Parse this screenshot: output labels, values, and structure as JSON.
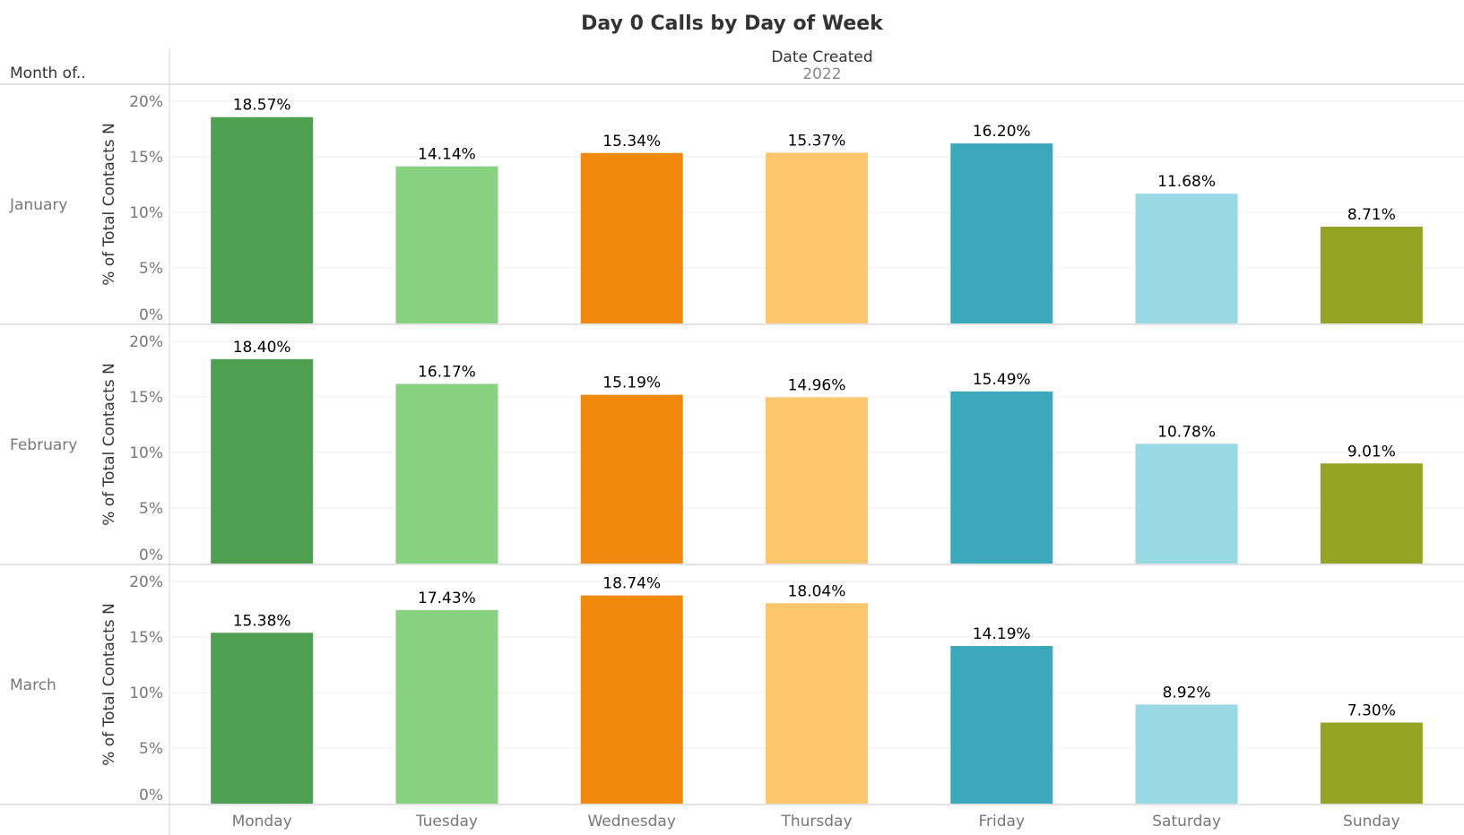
{
  "title": "Day 0 Calls by Day of Week",
  "row_header": "Month of..",
  "column_header": "Date Created",
  "column_sub_header": "2022",
  "chart_data": {
    "type": "bar",
    "categories": [
      "Monday",
      "Tuesday",
      "Wednesday",
      "Thursday",
      "Friday",
      "Saturday",
      "Sunday"
    ],
    "ylabel": "% of Total Contacts N",
    "ylim": [
      0,
      20
    ],
    "yticks": [
      "0%",
      "5%",
      "10%",
      "15%",
      "20%"
    ],
    "grid": true,
    "colors": [
      "#4e9f50",
      "#87d180",
      "#ef8a0c",
      "#fcc66d",
      "#3ca8bc",
      "#98d9e4",
      "#94a323"
    ],
    "panels": [
      {
        "month": "January",
        "values": [
          18.57,
          14.14,
          15.34,
          15.37,
          16.2,
          11.68,
          8.71
        ],
        "labels": [
          "18.57%",
          "14.14%",
          "15.34%",
          "15.37%",
          "16.20%",
          "11.68%",
          "8.71%"
        ]
      },
      {
        "month": "February",
        "values": [
          18.4,
          16.17,
          15.19,
          14.96,
          15.49,
          10.78,
          9.01
        ],
        "labels": [
          "18.40%",
          "16.17%",
          "15.19%",
          "14.96%",
          "15.49%",
          "10.78%",
          "9.01%"
        ]
      },
      {
        "month": "March",
        "values": [
          15.38,
          17.43,
          18.74,
          18.04,
          14.19,
          8.92,
          7.3
        ],
        "labels": [
          "15.38%",
          "17.43%",
          "18.74%",
          "18.04%",
          "14.19%",
          "8.92%",
          "7.30%"
        ]
      }
    ]
  }
}
